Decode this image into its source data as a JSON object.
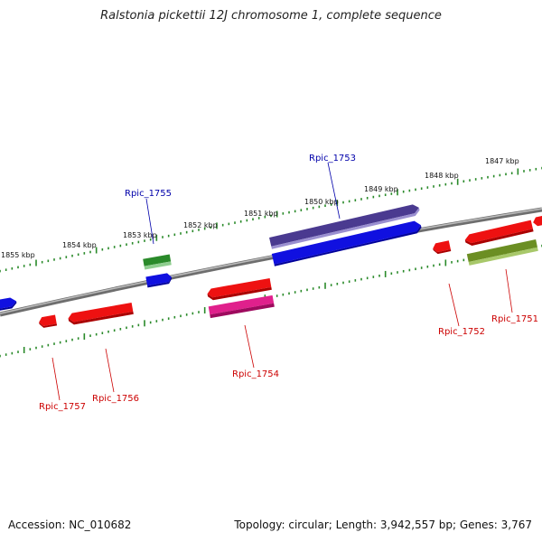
{
  "title": "Ralstonia pickettii 12J chromosome 1, complete sequence",
  "footer": {
    "accession": "Accession: NC_010682",
    "summary": "Topology: circular; Length: 3,942,557 bp; Genes: 3,767"
  },
  "colors": {
    "backbone": "#888888",
    "tick": "#2a8a2a",
    "label_forward": "#0000aa",
    "label_reverse": "#cc0000"
  },
  "scale_labels": [
    "1855 kbp",
    "1854 kbp",
    "1853 kbp",
    "1852 kbp",
    "1851 kbp",
    "1850 kbp",
    "1849 kbp",
    "1848 kbp",
    "1847 kbp"
  ],
  "gene_labels": {
    "rpic_1753": "Rpic_1753",
    "rpic_1755": "Rpic_1755",
    "rpic_1754": "Rpic_1754",
    "rpic_1752": "Rpic_1752",
    "rpic_1751": "Rpic_1751",
    "rpic_1756": "Rpic_1756",
    "rpic_1757": "Rpic_1757"
  },
  "features": [
    {
      "label": "",
      "strand": "forward",
      "color": "#1010e0"
    },
    {
      "label": "Rpic_1755",
      "strand": "forward",
      "color": "#1010e0"
    },
    {
      "label": "",
      "strand": "forward",
      "color": "#2a8a2a"
    },
    {
      "label": "Rpic_1753",
      "strand": "forward",
      "color": "#4a3a90"
    },
    {
      "label": "",
      "strand": "forward",
      "color": "#1010e0"
    },
    {
      "label": "Rpic_1757",
      "strand": "reverse",
      "color": "#ee1111"
    },
    {
      "label": "Rpic_1756",
      "strand": "reverse",
      "color": "#ee1111"
    },
    {
      "label": "",
      "strand": "reverse",
      "color": "#ee1111"
    },
    {
      "label": "Rpic_1754",
      "strand": "reverse",
      "color": "#e0208c"
    },
    {
      "label": "Rpic_1752",
      "strand": "reverse",
      "color": "#ee1111"
    },
    {
      "label": "",
      "strand": "reverse",
      "color": "#ee1111"
    },
    {
      "label": "Rpic_1751",
      "strand": "reverse",
      "color": "#6b8e23"
    },
    {
      "label": "",
      "strand": "reverse",
      "color": "#ee1111"
    }
  ]
}
